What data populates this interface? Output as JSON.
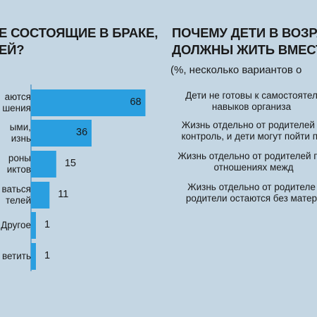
{
  "chart_data": [
    {
      "type": "bar",
      "orientation": "horizontal",
      "title": [
        "Е СОСТОЯЩИЕ В БРАКЕ,",
        "ЕЙ?"
      ],
      "categories": [
        [
          "аются",
          "шения"
        ],
        [
          "ыми,",
          "изнь"
        ],
        [
          "роны",
          "иктов"
        ],
        [
          "ваться",
          "телей"
        ],
        [
          "Другое"
        ],
        [
          "ветить"
        ]
      ],
      "values": [
        68,
        36,
        15,
        11,
        1,
        1
      ],
      "xlim": [
        0,
        72
      ],
      "bar_color": "#2a9fe0"
    },
    {
      "type": "table",
      "title": [
        "ПОЧЕМУ ДЕТИ В ВОЗРАСТ",
        "ДОЛЖНЫ ЖИТЬ ВМЕСТЕ С"
      ],
      "subtitle": "(%, несколько вариантов о",
      "items": [
        [
          "Дети не готовы к самостоятел",
          "навыков организа"
        ],
        [
          "Жизнь отдельно от родителей о",
          "контроль, и дети могут пойти по"
        ],
        [
          "Жизнь отдельно от родителей при",
          "отношениях межд"
        ],
        [
          "Жизнь отдельно от родителе",
          "родители остаются без матер"
        ]
      ]
    }
  ]
}
